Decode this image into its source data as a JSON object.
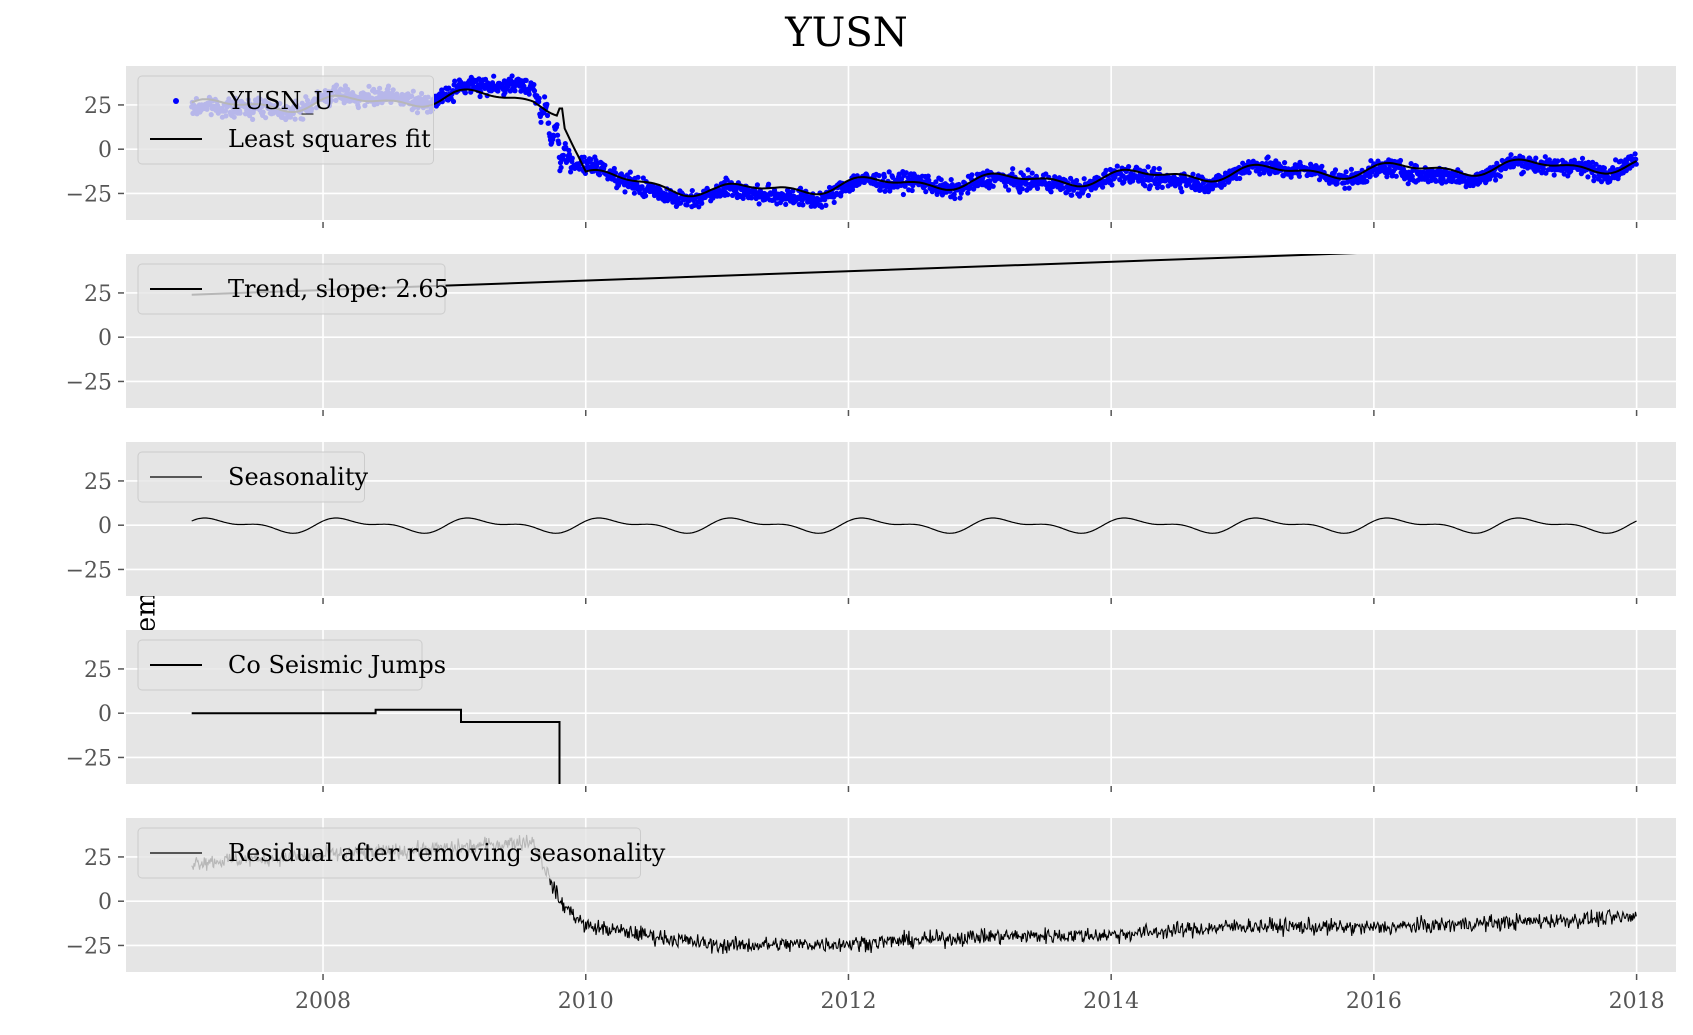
{
  "chart_data": {
    "title": "YUSN",
    "ylabel": "Displacement (mm)",
    "x_ticks": [
      "2008",
      "2010",
      "2012",
      "2014",
      "2016",
      "2018"
    ],
    "y_ticks": [
      "25",
      "0",
      "−25"
    ],
    "xlim": [
      2006.5,
      2018.3
    ],
    "ylim": [
      -40,
      47
    ],
    "grid": true,
    "panels": [
      {
        "type": "scatter+line",
        "legend": [
          "YUSN_U",
          "Least squares fit"
        ],
        "series": [
          {
            "name": "YUSN_U",
            "kind": "points",
            "color": "#0000ff",
            "x": [
              2007.0,
              2007.5,
              2008.0,
              2008.5,
              2009.0,
              2009.3,
              2009.6,
              2009.8,
              2010.0,
              2010.5,
              2011.0,
              2011.5,
              2012.0,
              2012.5,
              2013.0,
              2013.5,
              2014.0,
              2014.5,
              2015.0,
              2015.5,
              2016.0,
              2016.5,
              2017.0,
              2017.5,
              2018.0
            ],
            "y": [
              20,
              24,
              27,
              29,
              31,
              35,
              36,
              0,
              -12,
              -24,
              -25,
              -27,
              -22,
              -18,
              -20,
              -19,
              -17,
              -18,
              -13,
              -12,
              -14,
              -15,
              -11,
              -10,
              -8
            ]
          },
          {
            "name": "Least squares fit",
            "kind": "line",
            "color": "#000000",
            "x": [
              2007.0,
              2008.0,
              2008.5,
              2009.0,
              2009.6,
              2009.8,
              2010.0,
              2011.0,
              2012.0,
              2013.0,
              2014.0,
              2015.0,
              2016.0,
              2017.0,
              2018.0
            ],
            "y": [
              24,
              26,
              27,
              30,
              28,
              23,
              -15,
              -24,
              -20,
              -18,
              -16,
              -13,
              -12,
              -10,
              -9
            ]
          }
        ]
      },
      {
        "type": "line",
        "legend": [
          "Trend, slope: 2.65"
        ],
        "series": [
          {
            "name": "Trend, slope: 2.65",
            "x": [
              2007.0,
              2018.0
            ],
            "y": [
              24,
              53.2
            ]
          }
        ]
      },
      {
        "type": "line",
        "legend": [
          "Seasonality"
        ],
        "series": [
          {
            "name": "Seasonality",
            "kind": "sinusoid",
            "amplitude_annual": 3.2,
            "amplitude_semiannual": 1.8,
            "x_range": [
              2007.0,
              2018.0
            ]
          }
        ]
      },
      {
        "type": "line",
        "legend": [
          "Co Seismic Jumps"
        ],
        "series": [
          {
            "name": "Co Seismic Jumps",
            "x": [
              2007.0,
              2008.4,
              2008.4,
              2009.05,
              2009.05,
              2009.8,
              2009.8
            ],
            "y": [
              0,
              0,
              2,
              2,
              -5,
              -5,
              -60
            ]
          }
        ]
      },
      {
        "type": "line",
        "legend": [
          "Residual after removing seasonality"
        ],
        "series": [
          {
            "name": "Residual after removing seasonality",
            "x": [
              2007.0,
              2008.0,
              2009.0,
              2009.6,
              2009.8,
              2010.0,
              2011.0,
              2012.0,
              2013.0,
              2014.0,
              2015.0,
              2016.0,
              2017.0,
              2018.0
            ],
            "y": [
              22,
              26,
              30,
              34,
              0,
              -14,
              -25,
              -24,
              -20,
              -19,
              -14,
              -15,
              -12,
              -9
            ]
          }
        ]
      }
    ]
  }
}
